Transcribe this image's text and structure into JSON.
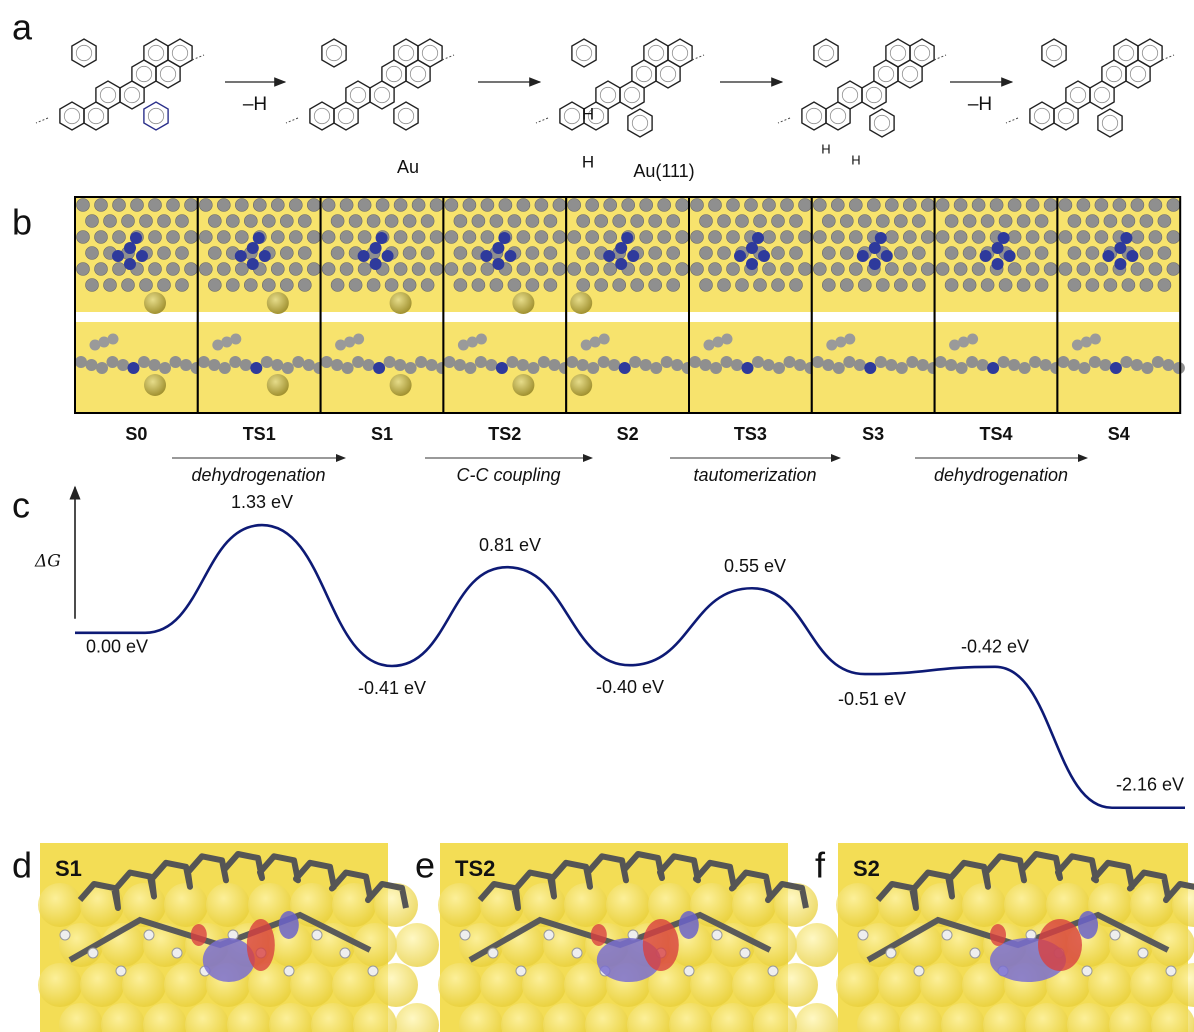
{
  "panel_labels": [
    "a",
    "b",
    "c",
    "d",
    "e",
    "f"
  ],
  "panel_a": {
    "step1_label": "–H",
    "s1_au": "Au",
    "ts2_h_top": "H",
    "ts2_h_bottom": "H",
    "ts2_surface": "Au(111)",
    "s3_h1": "H",
    "s3_h2": "H",
    "step4_label": "–H"
  },
  "panel_b": {
    "states": [
      "S0",
      "TS1",
      "S1",
      "TS2",
      "S2",
      "TS3",
      "S3",
      "TS4",
      "S4"
    ],
    "processes": [
      "dehydrogenation",
      "C-C coupling",
      "tautomerization",
      "dehydrogenation"
    ]
  },
  "chart_data": {
    "type": "line",
    "y_label": "ΔG",
    "values": [
      0.0,
      1.33,
      -0.41,
      0.81,
      -0.4,
      0.55,
      -0.51,
      -0.42,
      -2.16
    ],
    "value_labels": [
      "0.00 eV",
      "1.33 eV",
      "-0.41 eV",
      "0.81 eV",
      "-0.40 eV",
      "0.55 eV",
      "-0.51 eV",
      "-0.42 eV",
      "-2.16 eV"
    ],
    "ylim": [
      -2.2,
      1.8
    ],
    "color": "#0d1a75"
  },
  "panels_def": {
    "labels": [
      "S1",
      "TS2",
      "S2"
    ]
  }
}
